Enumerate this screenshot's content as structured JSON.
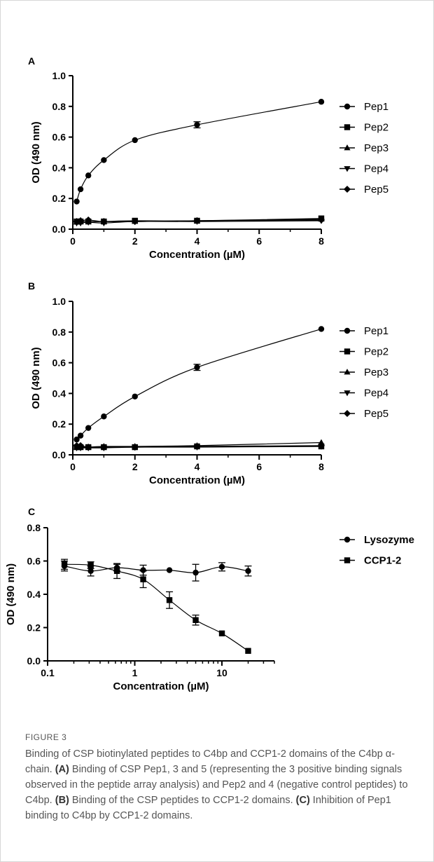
{
  "figure": {
    "label": "FIGURE 3",
    "caption_parts": [
      {
        "text": "Binding of CSP biotinylated peptides to C4bp and CCP1-2 domains of the C4bp α-chain. ",
        "bold": false
      },
      {
        "text": "(A)",
        "bold": true
      },
      {
        "text": " Binding of CSP Pep1, 3 and 5 (representing the 3 positive binding signals observed in the peptide array analysis) and Pep2 and 4 (negative control peptides) to C4bp. ",
        "bold": false
      },
      {
        "text": "(B)",
        "bold": true
      },
      {
        "text": " Binding of the CSP peptides to CCP1-2 domains. ",
        "bold": false
      },
      {
        "text": "(C)",
        "bold": true
      },
      {
        "text": " Inhibition of Pep1 binding to C4bp by CCP1-2 domains.",
        "bold": false
      }
    ]
  },
  "chart_data": [
    {
      "panel": "A",
      "type": "scatter",
      "xlabel": "Concentration (µM)",
      "ylabel": "OD (490 nm)",
      "xlim": [
        0,
        8
      ],
      "ylim": [
        0,
        1.0
      ],
      "xticks": [
        0,
        2,
        4,
        6,
        8
      ],
      "yticks": [
        0.0,
        0.2,
        0.4,
        0.6,
        0.8,
        1.0
      ],
      "xscale": "linear",
      "legend_position": "right",
      "x": [
        0.125,
        0.25,
        0.5,
        1,
        2,
        4,
        8
      ],
      "series": [
        {
          "name": "Pep1",
          "marker": "circle",
          "values": [
            0.18,
            0.26,
            0.35,
            0.45,
            0.58,
            0.68,
            0.83
          ],
          "errors": [
            0,
            0,
            0,
            0,
            0,
            0.02,
            0
          ]
        },
        {
          "name": "Pep2",
          "marker": "square",
          "values": [
            0.05,
            0.05,
            0.05,
            0.05,
            0.055,
            0.055,
            0.07
          ]
        },
        {
          "name": "Pep3",
          "marker": "triangle-up",
          "values": [
            0.045,
            0.05,
            0.05,
            0.05,
            0.05,
            0.055,
            0.065
          ]
        },
        {
          "name": "Pep4",
          "marker": "triangle-down",
          "values": [
            0.04,
            0.04,
            0.045,
            0.04,
            0.05,
            0.05,
            0.055
          ]
        },
        {
          "name": "Pep5",
          "marker": "diamond",
          "values": [
            0.05,
            0.055,
            0.06,
            0.05,
            0.05,
            0.055,
            0.06
          ]
        }
      ]
    },
    {
      "panel": "B",
      "type": "scatter",
      "xlabel": "Concentration (µM)",
      "ylabel": "OD (490 nm)",
      "xlim": [
        0,
        8
      ],
      "ylim": [
        0,
        1.0
      ],
      "xticks": [
        0,
        2,
        4,
        6,
        8
      ],
      "yticks": [
        0.0,
        0.2,
        0.4,
        0.6,
        0.8,
        1.0
      ],
      "xscale": "linear",
      "legend_position": "right",
      "x": [
        0.125,
        0.25,
        0.5,
        1,
        2,
        4,
        8
      ],
      "series": [
        {
          "name": "Pep1",
          "marker": "circle",
          "values": [
            0.1,
            0.125,
            0.175,
            0.25,
            0.38,
            0.57,
            0.82
          ],
          "errors": [
            0,
            0,
            0,
            0,
            0,
            0.02,
            0
          ]
        },
        {
          "name": "Pep2",
          "marker": "square",
          "values": [
            0.05,
            0.05,
            0.05,
            0.05,
            0.05,
            0.055,
            0.055
          ]
        },
        {
          "name": "Pep3",
          "marker": "triangle-up",
          "values": [
            0.05,
            0.05,
            0.05,
            0.055,
            0.055,
            0.06,
            0.08
          ]
        },
        {
          "name": "Pep4",
          "marker": "triangle-down",
          "values": [
            0.045,
            0.045,
            0.045,
            0.045,
            0.05,
            0.05,
            0.055
          ]
        },
        {
          "name": "Pep5",
          "marker": "diamond",
          "values": [
            0.06,
            0.06,
            0.05,
            0.05,
            0.05,
            0.055,
            0.06
          ]
        }
      ]
    },
    {
      "panel": "C",
      "type": "scatter",
      "xlabel": "Concentration (µM)",
      "ylabel": "OD (490 nm)",
      "xlim": [
        0.1,
        40
      ],
      "ylim": [
        0,
        0.8
      ],
      "xticks": [
        0.1,
        1,
        10
      ],
      "yticks": [
        0.0,
        0.2,
        0.4,
        0.6,
        0.8
      ],
      "xscale": "log",
      "legend_position": "right",
      "x": [
        0.156,
        0.3125,
        0.625,
        1.25,
        2.5,
        5,
        10,
        20
      ],
      "series": [
        {
          "name": "Lysozyme",
          "marker": "circle",
          "values": [
            0.57,
            0.54,
            0.56,
            0.545,
            0.545,
            0.53,
            0.565,
            0.54
          ],
          "errors": [
            0.03,
            0.03,
            0.02,
            0.03,
            0,
            0.05,
            0.025,
            0.03
          ]
        },
        {
          "name": "CCP1-2",
          "marker": "square",
          "values": [
            0.58,
            0.575,
            0.54,
            0.49,
            0.365,
            0.245,
            0.165,
            0.06
          ],
          "errors": [
            0.03,
            0.02,
            0.045,
            0.05,
            0.05,
            0.03,
            0,
            0
          ]
        }
      ]
    }
  ]
}
